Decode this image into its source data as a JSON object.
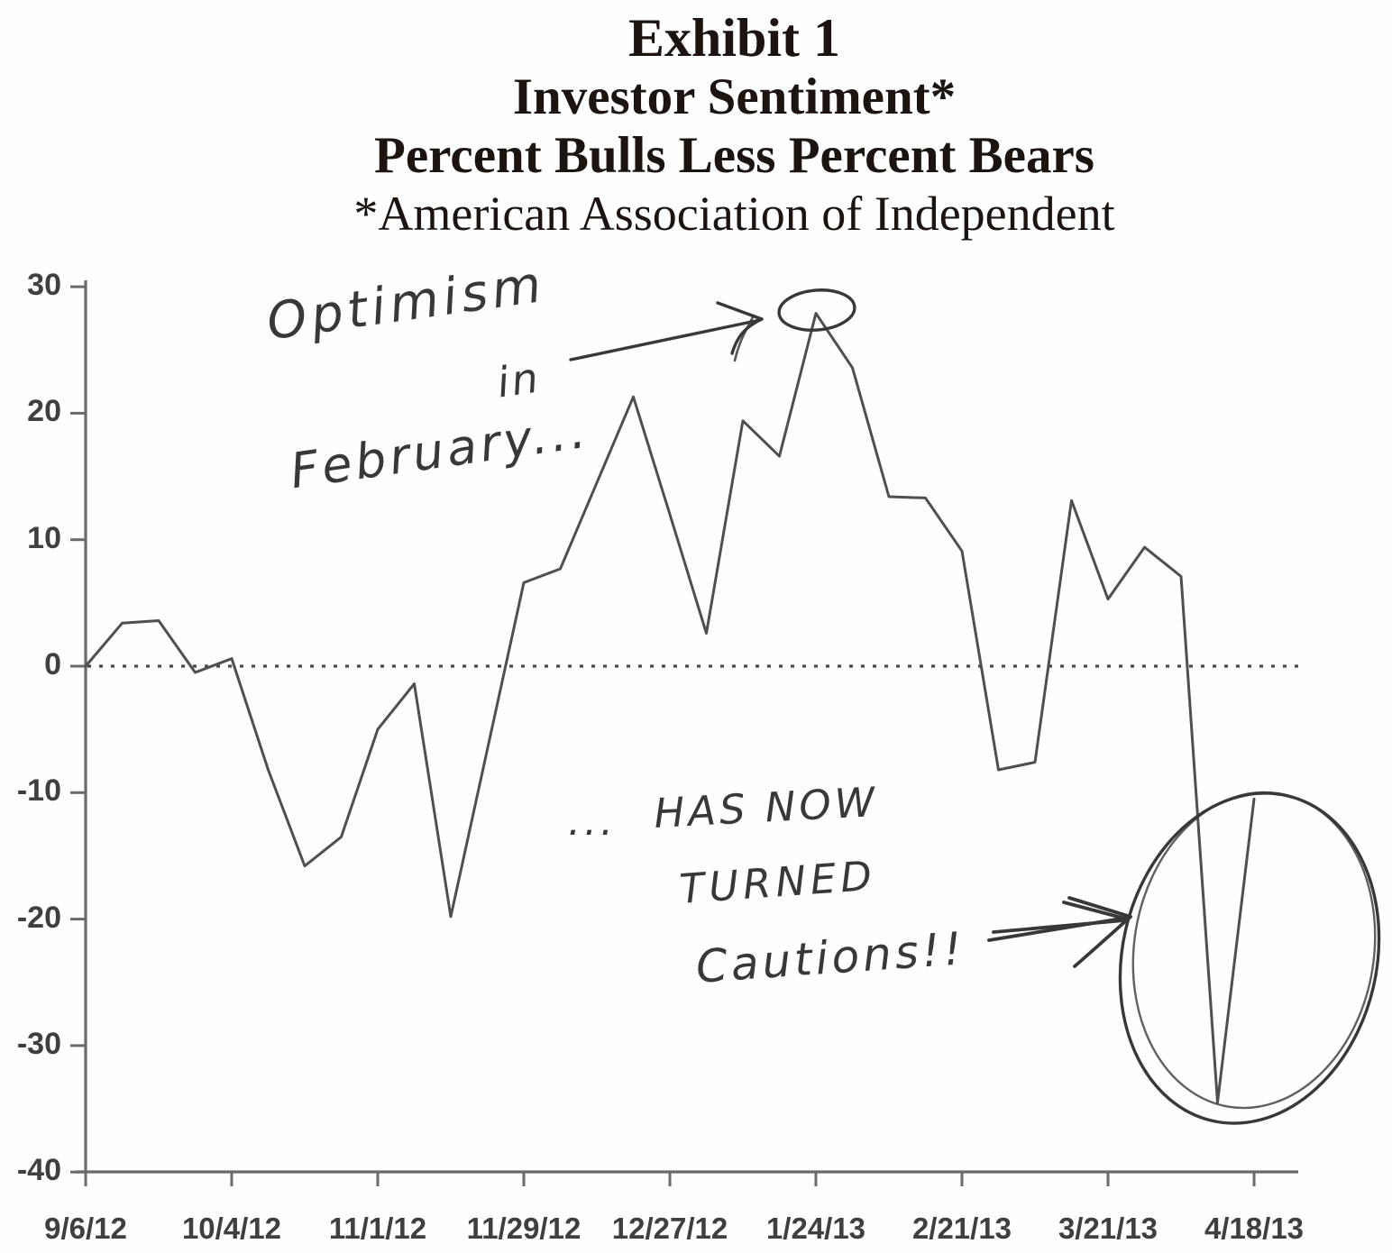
{
  "title": {
    "line1": "Exhibit 1",
    "line2": "Investor Sentiment*",
    "line3": "Percent Bulls Less Percent Bears",
    "line4": "*American Association of Independent"
  },
  "annotations": {
    "optimism_line1": "Optimism",
    "optimism_line2": "in",
    "optimism_line3": "February...",
    "caution_prefix": "...",
    "caution_line1": "HAS NOW",
    "caution_line2": "TURNED",
    "caution_line3": "Cautions!!"
  },
  "chart_data": {
    "type": "line",
    "title": "Investor Sentiment: Percent Bulls Less Percent Bears (AAII)",
    "x": [
      "9/6/12",
      "9/13/12",
      "9/20/12",
      "9/27/12",
      "10/4/12",
      "10/11/12",
      "10/18/12",
      "10/25/12",
      "11/1/12",
      "11/8/12",
      "11/15/12",
      "11/22/12",
      "11/29/12",
      "12/6/12",
      "12/13/12",
      "12/20/12",
      "12/27/12",
      "1/3/13",
      "1/10/13",
      "1/17/13",
      "1/24/13",
      "1/31/13",
      "2/7/13",
      "2/14/13",
      "2/21/13",
      "2/28/13",
      "3/7/13",
      "3/14/13",
      "3/21/13",
      "3/28/13",
      "4/4/13",
      "4/11/13",
      "4/18/13"
    ],
    "values": [
      0,
      3.4,
      3.6,
      -0.5,
      0.6,
      -8.2,
      -15.8,
      -13.5,
      -5,
      -1.4,
      -19.8,
      -6.6,
      6.6,
      7.7,
      14.5,
      21.3,
      12,
      2.6,
      19.4,
      16.6,
      27.9,
      23.6,
      13.4,
      13.3,
      9.1,
      -8.2,
      -7.6,
      13.1,
      5.3,
      9.4,
      7.1,
      -34.5,
      -10.5
    ],
    "x_tick_labels": [
      "9/6/12",
      "10/4/12",
      "11/1/12",
      "11/29/12",
      "12/27/12",
      "1/24/13",
      "2/21/13",
      "3/21/13",
      "4/18/13"
    ],
    "x_tick_indices": [
      0,
      4,
      8,
      12,
      16,
      20,
      24,
      28,
      32
    ],
    "y_tick_labels": [
      "30",
      "20",
      "10",
      "0",
      "-10",
      "-20",
      "-30",
      "-40"
    ],
    "y_ticks": [
      30,
      20,
      10,
      0,
      -10,
      -20,
      -30,
      -40
    ],
    "ylim": [
      -40,
      30
    ],
    "zero_line": "dotted",
    "legend": "none",
    "grid": "off",
    "annotated_peak": {
      "date": "1/24/13",
      "value": 27.9
    },
    "annotated_trough": {
      "date": "4/11/13",
      "value": -34.5
    }
  },
  "colors": {
    "line": "#4f4f4f",
    "axis": "#6a6a6a",
    "tick_labels": "#3f3f3f",
    "title_text": "#1b1410",
    "handwriting": "#383838",
    "background": "#fefefe"
  }
}
